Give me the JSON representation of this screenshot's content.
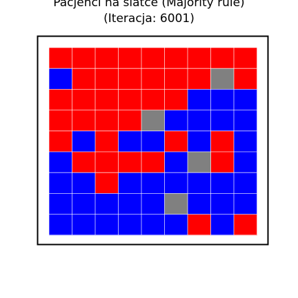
{
  "chart_data": {
    "type": "heatmap",
    "title_line1": "Pacjenci na siatce (Majority rule)",
    "title_line2": "(Iteracja: 6001)",
    "rows": 9,
    "cols": 9,
    "grid": [
      [
        "R",
        "R",
        "R",
        "R",
        "R",
        "R",
        "R",
        "R",
        "R"
      ],
      [
        "B",
        "R",
        "R",
        "R",
        "R",
        "R",
        "R",
        "G",
        "R"
      ],
      [
        "R",
        "R",
        "R",
        "R",
        "R",
        "R",
        "B",
        "B",
        "B"
      ],
      [
        "R",
        "R",
        "R",
        "R",
        "G",
        "B",
        "B",
        "B",
        "B"
      ],
      [
        "R",
        "B",
        "R",
        "B",
        "B",
        "R",
        "B",
        "R",
        "B"
      ],
      [
        "B",
        "R",
        "R",
        "R",
        "R",
        "B",
        "G",
        "R",
        "B"
      ],
      [
        "B",
        "B",
        "R",
        "B",
        "B",
        "B",
        "B",
        "B",
        "B"
      ],
      [
        "B",
        "B",
        "B",
        "B",
        "B",
        "G",
        "B",
        "B",
        "B"
      ],
      [
        "B",
        "B",
        "B",
        "B",
        "B",
        "B",
        "R",
        "B",
        "R"
      ]
    ],
    "colors": {
      "R": "#ff0000",
      "B": "#0000ff",
      "G": "#808080"
    },
    "grid_lines": true
  }
}
